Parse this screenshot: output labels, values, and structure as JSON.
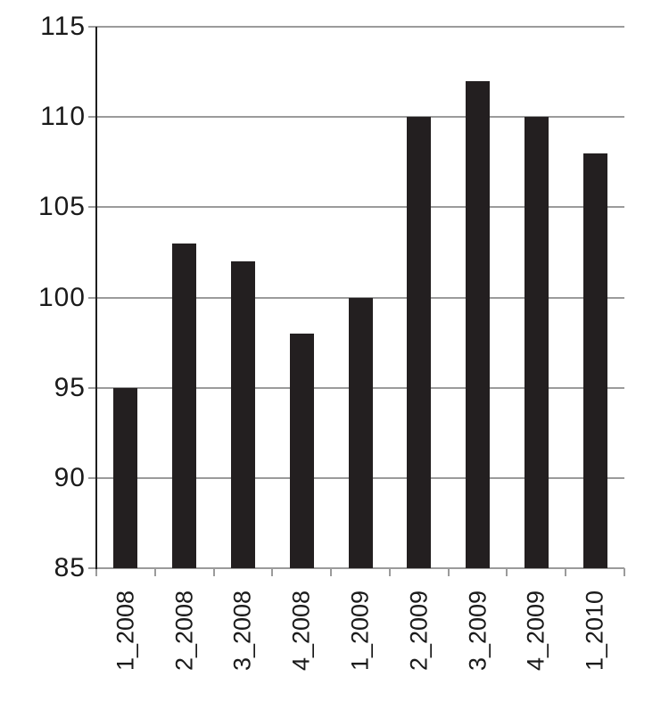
{
  "chart_data": {
    "type": "bar",
    "categories": [
      "1_2008",
      "2_2008",
      "3_2008",
      "4_2008",
      "1_2009",
      "2_2009",
      "3_2009",
      "4_2009",
      "1_2010"
    ],
    "values": [
      95,
      103,
      102,
      98,
      100,
      110,
      112,
      110,
      108
    ],
    "title": "",
    "xlabel": "",
    "ylabel": "",
    "ylim": [
      85,
      115
    ],
    "yticks": [
      85,
      90,
      95,
      100,
      105,
      110,
      115
    ],
    "legend": null,
    "grid": true,
    "colors": {
      "bar": "#231f20",
      "gridline": "#9b9b9b",
      "baseline": "#9b9b9b",
      "y_axis": "#1d1d1d",
      "text": "#1a1a1a",
      "background": "#ffffff"
    }
  }
}
